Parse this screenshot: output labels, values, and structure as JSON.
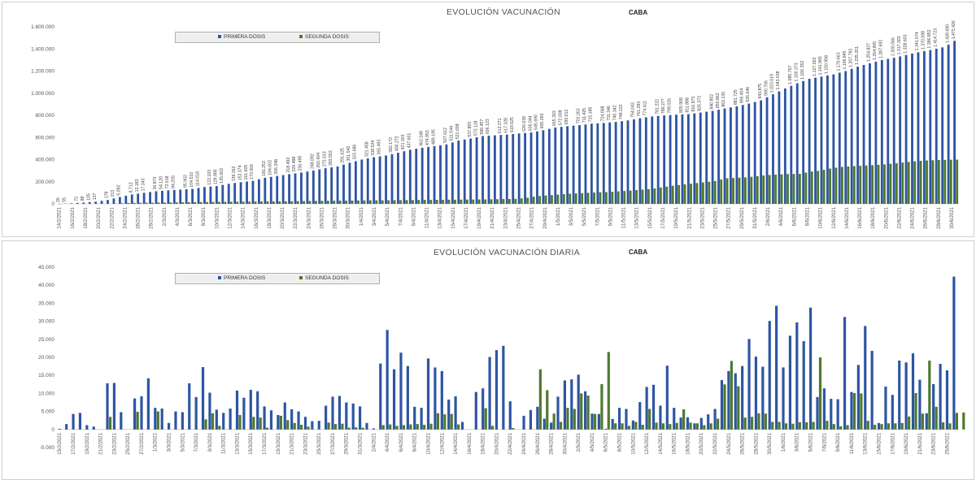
{
  "chart_data": [
    {
      "type": "bar",
      "title": "EVOLUCIÓN VACUNACIÓN",
      "subtitle": "CABA",
      "ylim": [
        0,
        1600000
      ],
      "yticks": [
        "0",
        "200.000",
        "400.000",
        "600.000",
        "800.000",
        "1.000.000",
        "1.200.000",
        "1.400.000",
        "1.600.000"
      ],
      "grid": false,
      "legend_position": "top-left",
      "colors": {
        "primera": "#2E55A3",
        "segunda": "#4E7A2E"
      },
      "x_start": "14/2/2021",
      "x_end": "30/6/2021",
      "x_tick_labels": [
        "14/2/2021",
        "16/2/2021",
        "18/2/2021",
        "20/2/2021",
        "22/2/2021",
        "24/2/2021",
        "26/2/2021",
        "28/2/2021",
        "2/3/2021",
        "4/3/2021",
        "6/3/2021",
        "8/3/2021",
        "10/3/2021",
        "12/3/2021",
        "14/3/2021",
        "16/3/2021",
        "18/3/2021",
        "20/3/2021",
        "22/3/2021",
        "24/3/2021",
        "26/3/2021",
        "28/3/2021",
        "30/3/2021",
        "1/4/2021",
        "3/4/2021",
        "5/4/2021",
        "7/4/2021",
        "9/4/2021",
        "11/4/2021",
        "13/4/2021",
        "15/4/2021",
        "17/4/2021",
        "19/4/2021",
        "21/4/2021",
        "23/4/2021",
        "25/4/2021",
        "27/4/2021",
        "29/4/2021",
        "1/5/2021",
        "3/5/2021",
        "5/5/2021",
        "7/5/2021",
        "9/5/2021",
        "11/5/2021",
        "13/5/2021",
        "15/5/2021",
        "17/5/2021",
        "19/5/2021",
        "21/5/2021",
        "23/5/2021",
        "25/5/2021",
        "27/5/2021",
        "29/5/2021",
        "31/5/2021",
        "2/6/2021",
        "4/6/2021",
        "6/6/2021",
        "8/6/2021",
        "10/6/2021",
        "12/6/2021",
        "14/6/2021",
        "16/6/2021",
        "18/6/2021",
        "20/6/2021",
        "22/6/2021",
        "24/6/2021",
        "26/6/2021",
        "28/6/2021",
        "30/6/2021"
      ],
      "series": [
        {
          "name": "PRIMERA DOSIS",
          "anchors": [
            [
              0,
              26
            ],
            [
              2,
              5000
            ],
            [
              4,
              12000
            ],
            [
              6,
              20000
            ],
            [
              8,
              35000
            ],
            [
              10,
              62000
            ],
            [
              12,
              85000
            ],
            [
              14,
              100000
            ],
            [
              16,
              114000
            ],
            [
              18,
              122000
            ],
            [
              20,
              129000
            ],
            [
              22,
              135000
            ],
            [
              24,
              152000
            ],
            [
              26,
              161000
            ],
            [
              28,
              181000
            ],
            [
              30,
              196000
            ],
            [
              32,
              208000
            ],
            [
              34,
              236000
            ],
            [
              36,
              252000
            ],
            [
              38,
              268000
            ],
            [
              40,
              283000
            ],
            [
              42,
              301000
            ],
            [
              44,
              322000
            ],
            [
              46,
              338000
            ],
            [
              48,
              371000
            ],
            [
              50,
              400000
            ],
            [
              52,
              421000
            ],
            [
              54,
              437000
            ],
            [
              56,
              462000
            ],
            [
              58,
              489000
            ],
            [
              60,
              507000
            ],
            [
              62,
              521000
            ],
            [
              64,
              537000
            ],
            [
              66,
              572000
            ],
            [
              68,
              590000
            ],
            [
              70,
              613000
            ],
            [
              72,
              619000
            ],
            [
              74,
              626000
            ],
            [
              76,
              636000
            ],
            [
              78,
              645000
            ],
            [
              80,
              665000
            ],
            [
              82,
              690000
            ],
            [
              84,
              702000
            ],
            [
              86,
              711000
            ],
            [
              88,
              724000
            ],
            [
              90,
              731000
            ],
            [
              92,
              740000
            ],
            [
              94,
              754000
            ],
            [
              96,
              774000
            ],
            [
              98,
              790000
            ],
            [
              100,
              799000
            ],
            [
              102,
              806000
            ],
            [
              104,
              811000
            ],
            [
              106,
              825000
            ],
            [
              108,
              840000
            ],
            [
              110,
              862000
            ],
            [
              112,
              881000
            ],
            [
              114,
              906000
            ],
            [
              116,
              935000
            ],
            [
              118,
              990000
            ],
            [
              120,
              1043000
            ],
            [
              122,
              1090000
            ],
            [
              124,
              1130000
            ],
            [
              126,
              1150000
            ],
            [
              128,
              1170000
            ],
            [
              130,
              1200000
            ],
            [
              132,
              1240000
            ],
            [
              134,
              1270000
            ],
            [
              136,
              1300000
            ],
            [
              138,
              1320000
            ],
            [
              140,
              1345000
            ],
            [
              142,
              1370000
            ],
            [
              144,
              1390000
            ],
            [
              146,
              1414000
            ],
            [
              147,
              1438000
            ],
            [
              148,
              1473000
            ]
          ]
        },
        {
          "name": "SEGUNDA DOSIS",
          "anchors": [
            [
              0,
              0
            ],
            [
              10,
              0
            ],
            [
              12,
              8000
            ],
            [
              20,
              12000
            ],
            [
              30,
              18000
            ],
            [
              40,
              22000
            ],
            [
              50,
              28000
            ],
            [
              60,
              32000
            ],
            [
              70,
              36000
            ],
            [
              80,
              40000
            ],
            [
              86,
              45000
            ],
            [
              88,
              52000
            ],
            [
              90,
              68000
            ],
            [
              96,
              90000
            ],
            [
              100,
              100000
            ],
            [
              104,
              108000
            ],
            [
              108,
              120000
            ],
            [
              112,
              135000
            ],
            [
              114,
              150000
            ],
            [
              116,
              164000
            ],
            [
              118,
              175000
            ],
            [
              121,
              190000
            ],
            [
              124,
              205000
            ],
            [
              126,
              230000
            ],
            [
              130,
              240000
            ],
            [
              134,
              260000
            ],
            [
              138,
              270000
            ],
            [
              140,
              270000
            ],
            [
              142,
              290000
            ],
            [
              144,
              300000
            ],
            [
              146,
              320000
            ],
            [
              148,
              333000
            ],
            [
              150,
              340000
            ],
            [
              152,
              345000
            ],
            [
              154,
              350000
            ],
            [
              156,
              356000
            ],
            [
              158,
              365000
            ],
            [
              160,
              375000
            ],
            [
              162,
              385000
            ],
            [
              164,
              392000
            ],
            [
              166,
              395000
            ],
            [
              168,
              398000
            ],
            [
              170,
              400000
            ]
          ]
        }
      ],
      "value_labels": [
        "26",
        "55",
        "72",
        "88",
        "105",
        "137",
        "178",
        "213",
        "5.092",
        "8.712",
        "12.182",
        "17.343",
        "36.873",
        "54.120",
        "72.018",
        "84.205",
        "95.902",
        "104.510",
        "114.018",
        "122.193",
        "129.995",
        "135.002",
        "139.262",
        "152.374",
        "161.605",
        "172.006",
        "181.253",
        "194.602",
        "206.348",
        "218.492",
        "229.488",
        "236.495",
        "248.092",
        "260.604",
        "272.013",
        "283.552",
        "291.625",
        "301.542",
        "315.686",
        "321.458",
        "338.524",
        "365.493",
        "382.172",
        "400.272",
        "421.303",
        "437.601",
        "462.188",
        "474.953",
        "489.195",
        "507.612",
        "511.544",
        "521.658",
        "537.893",
        "572.118",
        "586.457",
        "606.123",
        "612.371",
        "617.328",
        "619.625",
        "626.639",
        "636.044",
        "645.690",
        "655.293",
        "665.303",
        "672.008",
        "690.012",
        "702.263",
        "711.425",
        "715.185",
        "724.068",
        "731.346",
        "740.342",
        "748.122",
        "754.043",
        "761.293",
        "774.411",
        "781.222",
        "789.277",
        "799.026",
        "805.968",
        "811.888",
        "816.973",
        "825.072",
        "840.802",
        "850.862",
        "862.130",
        "881.725",
        "906.404",
        "926.646",
        "943.875",
        "990.706",
        "1.023.619",
        "1.043.638",
        "1.085.767",
        "1.100.373",
        "1.106.352",
        "1.127.003",
        "1.141.965",
        "1.150.958",
        "1.170.663",
        "1.196.845",
        "1.207.793",
        "1.235.201",
        "1.254.827",
        "1.264.905",
        "1.287.692",
        "1.300.066",
        "1.317.302",
        "1.328.603",
        "1.341.574",
        "1.370.098",
        "1.386.852",
        "1.414.723",
        "1.439.690",
        "1.473.426"
      ]
    },
    {
      "type": "bar",
      "title": "EVOLUCIÓN VACUNACIÓN DIARIA",
      "subtitle": "CABA",
      "ylim": [
        -5000,
        45000
      ],
      "yticks": [
        "-5.000",
        "0",
        "5.000",
        "10.000",
        "15.000",
        "20.000",
        "25.000",
        "30.000",
        "35.000",
        "40.000",
        "45.000"
      ],
      "grid": false,
      "legend_position": "top-left",
      "x_tick_labels": [
        "15/2/2021",
        "17/2/2021",
        "19/2/2021",
        "21/2/2021",
        "23/2/2021",
        "25/2/2021",
        "27/2/2021",
        "1/3/2021",
        "3/3/2021",
        "5/3/2021",
        "7/3/2021",
        "9/3/2021",
        "11/3/2021",
        "13/3/2021",
        "15/3/2021",
        "17/3/2021",
        "19/3/2021",
        "21/3/2021",
        "23/3/2021",
        "25/3/2021",
        "27/3/2021",
        "29/3/2021",
        "31/3/2021",
        "2/4/2021",
        "4/4/2021",
        "6/4/2021",
        "8/4/2021",
        "10/4/2021",
        "12/4/2021",
        "14/4/2021",
        "16/4/2021",
        "18/4/2021",
        "20/4/2021",
        "22/4/2021",
        "24/4/2021",
        "26/4/2021",
        "28/4/2021",
        "30/4/2021",
        "2/5/2021",
        "4/5/2021",
        "6/5/2021",
        "8/5/2021",
        "10/5/2021",
        "12/5/2021",
        "14/5/2021",
        "16/5/2021",
        "18/5/2021",
        "20/5/2021",
        "22/5/2021",
        "24/5/2021",
        "26/5/2021",
        "28/5/2021",
        "30/5/2021",
        "1/6/2021",
        "3/6/2021",
        "5/6/2021",
        "7/6/2021",
        "9/6/2021",
        "11/6/2021",
        "13/6/2021",
        "15/6/2021",
        "17/6/2021",
        "19/6/2021",
        "21/6/2021",
        "23/6/2021",
        "25/6/2021",
        "27/6/2021",
        "29/6/2021",
        "1/7/2021"
      ],
      "series": [
        {
          "name": "PRIMERA DOSIS",
          "values": [
            200,
            1500,
            4300,
            4600,
            1200,
            800,
            0,
            12800,
            12900,
            4800,
            0,
            8600,
            9200,
            14200,
            6000,
            5800,
            1800,
            5000,
            4800,
            12800,
            9000,
            17300,
            10200,
            5500,
            4600,
            5800,
            10800,
            8800,
            11000,
            10600,
            6400,
            5300,
            4000,
            7500,
            5600,
            5000,
            3500,
            2300,
            2400,
            6600,
            9100,
            9300,
            7500,
            7200,
            6400,
            1800,
            300,
            18300,
            27600,
            16700,
            21300,
            17600,
            6300,
            6000,
            19700,
            17200,
            16200,
            8300,
            9200,
            2100,
            0,
            10400,
            11400,
            20100,
            22000,
            23200,
            7800,
            0,
            3800,
            5400,
            6300,
            3000,
            1900,
            9100,
            13600,
            13900,
            15200,
            10600,
            4400,
            4300,
            200,
            2900,
            6000,
            5700,
            2500,
            7600,
            11800,
            12400,
            6600,
            17700,
            6000,
            3300,
            3400,
            1700,
            3200,
            4200,
            5700,
            13700,
            16200,
            15600,
            17600,
            25100,
            20200,
            17400,
            30100,
            34300,
            17200,
            26000,
            29700,
            24500,
            33800,
            9000,
            11400,
            8500,
            8400,
            31200,
            10400,
            17900,
            28700,
            21800,
            1800,
            11900,
            9600,
            19100,
            18600,
            21100,
            13800,
            4500,
            12600,
            18200,
            16400,
            42400
          ]
        },
        {
          "name": "SEGUNDA DOSIS",
          "values": [
            0,
            0,
            0,
            0,
            0,
            0,
            0,
            3500,
            0,
            0,
            0,
            4900,
            0,
            0,
            5000,
            0,
            0,
            0,
            0,
            0,
            0,
            2800,
            4500,
            1000,
            0,
            0,
            4000,
            0,
            3500,
            3300,
            500,
            0,
            3800,
            2600,
            1800,
            1300,
            800,
            0,
            0,
            1900,
            1500,
            1600,
            500,
            600,
            500,
            0,
            0,
            1200,
            1400,
            1000,
            1200,
            1400,
            1500,
            1300,
            1600,
            4500,
            4200,
            4300,
            1400,
            0,
            0,
            0,
            5900,
            1000,
            0,
            0,
            400,
            0,
            0,
            0,
            16700,
            10900,
            4400,
            2100,
            6000,
            5700,
            10000,
            9400,
            4300,
            12600,
            21500,
            1700,
            1700,
            1000,
            2100,
            1300,
            5700,
            1900,
            1700,
            1500,
            1800,
            5600,
            1900,
            1700,
            1200,
            1700,
            3000,
            12500,
            19000,
            12000,
            3300,
            3500,
            4500,
            4400,
            2100,
            2100,
            1700,
            1600,
            2000,
            2000,
            2100,
            20000,
            2400,
            1500,
            900,
            1200,
            10100,
            10000,
            2400,
            1300,
            1500,
            1700,
            1700,
            1800,
            3600,
            10100,
            4400,
            19100,
            6300,
            2000,
            1700,
            4600,
            4700
          ]
        }
      ]
    }
  ]
}
